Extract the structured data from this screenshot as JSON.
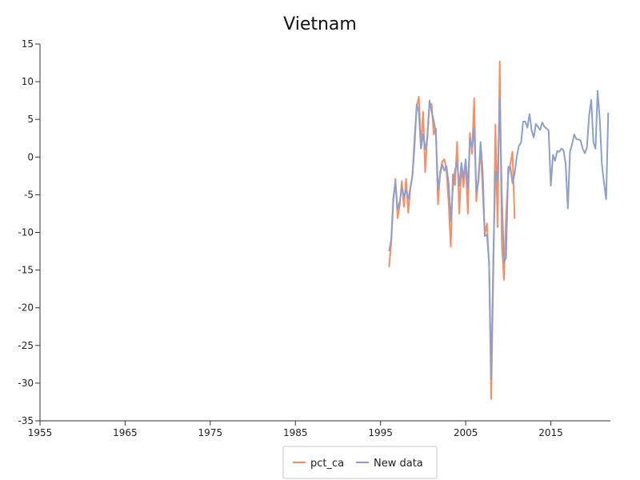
{
  "chart_data": {
    "type": "line",
    "title": "Vietnam",
    "xlabel": "",
    "ylabel": "",
    "xlim": [
      1955,
      2022
    ],
    "ylim": [
      -35,
      15
    ],
    "x_ticks": [
      1955,
      1965,
      1975,
      1985,
      1995,
      2005,
      2015
    ],
    "y_ticks": [
      15,
      10,
      5,
      0,
      -5,
      -10,
      -15,
      -20,
      -25,
      -30,
      -35
    ],
    "grid": false,
    "legend": "bottom-center",
    "series": [
      {
        "name": "pct_ca",
        "color": "#fc8d62",
        "x": [
          1996.0,
          1996.25,
          1996.5,
          1996.75,
          1997.0,
          1997.25,
          1997.5,
          1997.75,
          1998.0,
          1998.25,
          1998.5,
          1998.75,
          1999.0,
          1999.25,
          1999.5,
          1999.75,
          2000.0,
          2000.25,
          2000.5,
          2000.75,
          2001.0,
          2001.25,
          2001.5,
          2001.75,
          2002.0,
          2002.25,
          2002.5,
          2002.75,
          2003.0,
          2003.25,
          2003.5,
          2003.75,
          2004.0,
          2004.25,
          2004.5,
          2004.75,
          2005.0,
          2005.25,
          2005.5,
          2005.75,
          2006.0,
          2006.25,
          2006.5,
          2006.75,
          2007.0,
          2007.25,
          2007.5,
          2007.75,
          2008.0,
          2008.25,
          2008.5,
          2008.75,
          2009.0,
          2009.25,
          2009.5,
          2009.75,
          2010.0,
          2010.25,
          2010.5,
          2010.75
        ],
        "y": [
          -14.6,
          -11.5,
          -6.0,
          -2.9,
          -8.1,
          -6.5,
          -3.2,
          -6.6,
          -2.9,
          -7.4,
          -4.3,
          -2.3,
          2.6,
          6.7,
          8.0,
          1.2,
          6.0,
          -2.0,
          2.9,
          7.2,
          7.0,
          3.0,
          3.8,
          -6.3,
          -2.0,
          -0.6,
          -0.3,
          -1.8,
          -6.0,
          -11.9,
          -2.3,
          -3.7,
          2.0,
          -7.5,
          -1.1,
          -4.0,
          -0.5,
          -7.5,
          3.2,
          0.4,
          7.8,
          -5.9,
          -2.4,
          1.2,
          -4.5,
          -10.3,
          -8.8,
          -14.4,
          -32.1,
          -15.0,
          4.3,
          -9.3,
          12.7,
          -11.6,
          -16.3,
          -7.6,
          -2.4,
          -0.9,
          0.7,
          -8.2
        ]
      },
      {
        "name": "New data",
        "color": "#8da0cb",
        "x": [
          1996.0,
          1996.25,
          1996.5,
          1996.75,
          1997.0,
          1997.25,
          1997.5,
          1997.75,
          1998.0,
          1998.25,
          1998.5,
          1998.75,
          1999.0,
          1999.25,
          1999.5,
          1999.75,
          2000.0,
          2000.25,
          2000.5,
          2000.75,
          2001.0,
          2001.25,
          2001.5,
          2001.75,
          2002.0,
          2002.25,
          2002.5,
          2002.75,
          2003.0,
          2003.25,
          2003.5,
          2003.75,
          2004.0,
          2004.25,
          2004.5,
          2004.75,
          2005.0,
          2005.25,
          2005.5,
          2005.75,
          2006.0,
          2006.25,
          2006.5,
          2006.75,
          2007.0,
          2007.25,
          2007.5,
          2007.75,
          2008.0,
          2008.25,
          2008.5,
          2008.75,
          2009.0,
          2009.25,
          2009.5,
          2009.75,
          2010.0,
          2010.25,
          2010.5,
          2010.75,
          2011.0,
          2011.25,
          2011.5,
          2011.75,
          2012.0,
          2012.25,
          2012.5,
          2012.75,
          2013.0,
          2013.25,
          2013.5,
          2013.75,
          2014.0,
          2014.25,
          2014.5,
          2014.75,
          2015.0,
          2015.25,
          2015.5,
          2015.75,
          2016.0,
          2016.25,
          2016.5,
          2016.75,
          2017.0,
          2017.25,
          2017.5,
          2017.75,
          2018.0,
          2018.25,
          2018.5,
          2018.75,
          2019.0,
          2019.25,
          2019.5,
          2019.75,
          2020.0,
          2020.25,
          2020.5,
          2020.75,
          2021.0,
          2021.25,
          2021.5,
          2021.75
        ],
        "y": [
          -12.5,
          -11.0,
          -5.5,
          -3.3,
          -7.0,
          -6.0,
          -4.0,
          -5.3,
          -4.4,
          -5.6,
          -4.1,
          -2.5,
          1.5,
          7.0,
          5.9,
          1.1,
          3.0,
          1.0,
          2.5,
          7.5,
          6.0,
          4.8,
          3.2,
          -4.3,
          -2.3,
          -1.0,
          -1.8,
          -1.2,
          -3.5,
          -8.5,
          -4.0,
          -1.7,
          -0.7,
          -3.8,
          -0.8,
          -2.9,
          -0.3,
          -4.2,
          2.5,
          1.3,
          3.8,
          -4.8,
          -3.3,
          2.0,
          -2.0,
          -10.5,
          -10.3,
          -14.0,
          -29.5,
          -13.0,
          -2.0,
          -3.2,
          7.8,
          -5.0,
          -14.0,
          -13.3,
          -1.3,
          -1.3,
          -3.5,
          -2.2,
          0.0,
          1.5,
          1.9,
          4.7,
          4.7,
          3.9,
          5.7,
          3.5,
          2.6,
          4.4,
          4.0,
          3.6,
          4.6,
          4.0,
          3.8,
          3.5,
          -3.8,
          0.3,
          -0.5,
          0.8,
          0.7,
          1.1,
          0.9,
          -1.0,
          -6.8,
          0.7,
          1.7,
          3.0,
          2.4,
          2.3,
          2.2,
          1.1,
          0.5,
          1.3,
          5.5,
          7.6,
          2.0,
          1.1,
          8.8,
          5.0,
          -1.0,
          -3.4,
          -5.6,
          5.9
        ]
      }
    ]
  }
}
